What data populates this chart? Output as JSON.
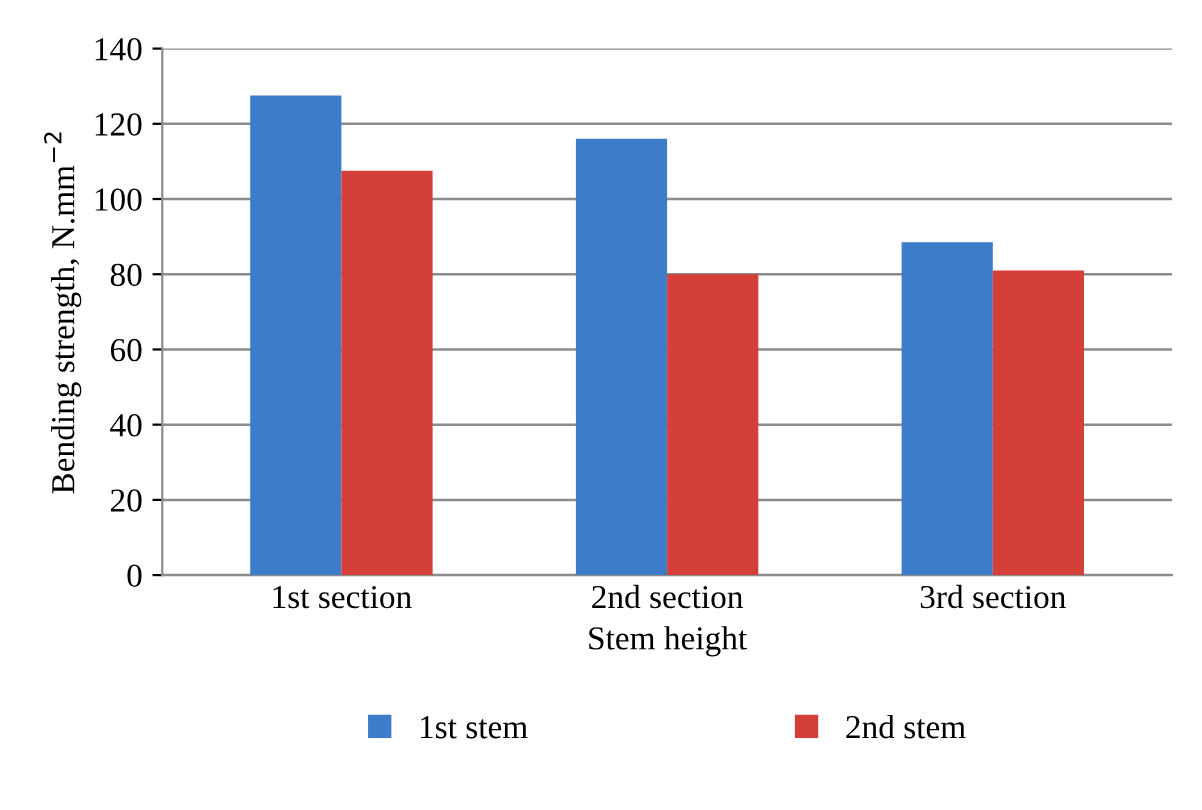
{
  "chart_data": {
    "type": "bar",
    "xlabel": "Stem height",
    "ylabel": "Bending strength, N.mm$^{−2}$",
    "categories": [
      "1st section",
      "2nd section",
      "3rd section"
    ],
    "series": [
      {
        "name": "1st stem",
        "color": "#3d7cc9",
        "values": [
          127.5,
          116,
          88.5
        ]
      },
      {
        "name": "2nd stem",
        "color": "#d43f3a",
        "values": [
          107.5,
          80,
          81
        ]
      }
    ],
    "ylim": [
      0,
      140
    ],
    "yticks": [
      0,
      20,
      40,
      60,
      80,
      100,
      120,
      140
    ],
    "grid": "y",
    "legend": "bottom"
  }
}
